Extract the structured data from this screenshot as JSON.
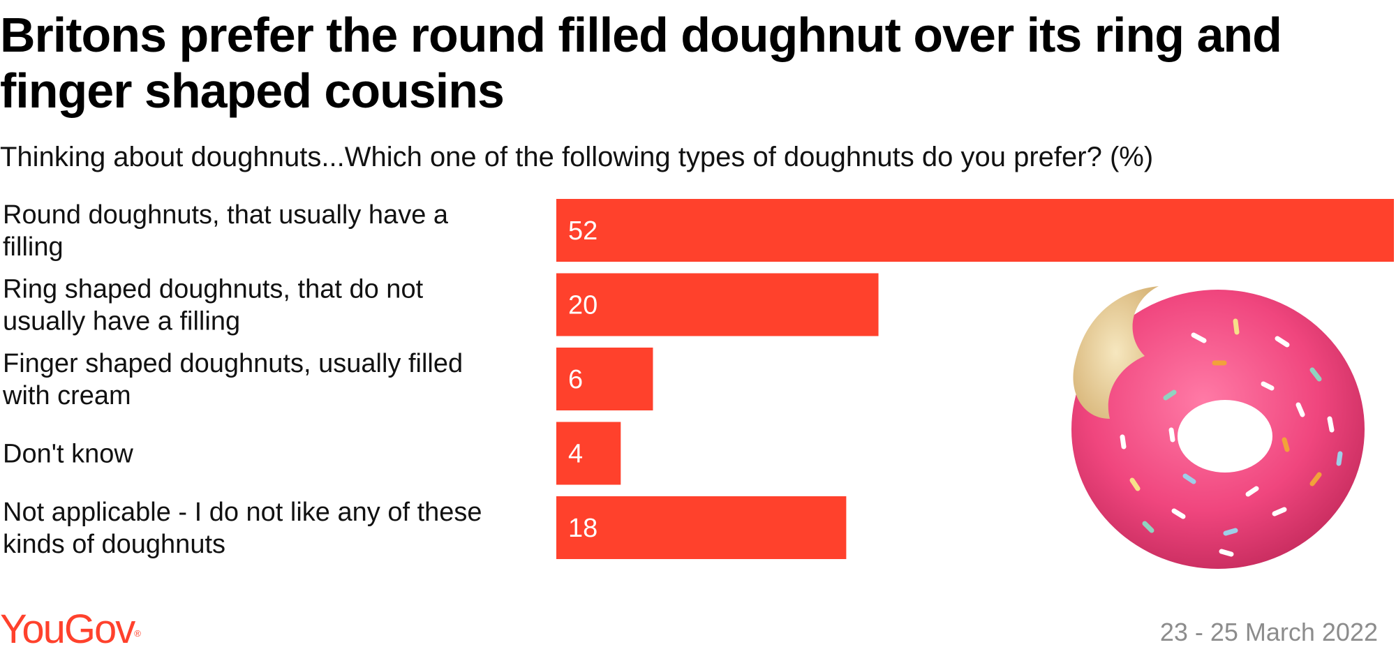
{
  "title": "Britons prefer the round filled doughnut over its ring and finger shaped cousins",
  "subtitle": "Thinking about doughnuts...Which one of the following types of doughnuts do you prefer? (%)",
  "logo_text": "YouGov",
  "date": "23 - 25 March 2022",
  "colors": {
    "bar": "#ff412c",
    "logo": "#ff412c",
    "date": "#8c8c8c",
    "donut_icing": "#f0467e"
  },
  "chart_data": {
    "type": "bar",
    "orientation": "horizontal",
    "title": "Britons prefer the round filled doughnut over its ring and finger shaped cousins",
    "subtitle": "Thinking about doughnuts...Which one of the following types of doughnuts do you prefer? (%)",
    "categories": [
      [
        "Round doughnuts, that usually have a",
        "filling"
      ],
      [
        "Ring shaped doughnuts, that do not",
        "usually have a filling"
      ],
      [
        "Finger shaped doughnuts, usually filled",
        "with cream"
      ],
      [
        "Don't know"
      ],
      [
        "Not applicable - I do not like any of these",
        "kinds of doughnuts"
      ]
    ],
    "values": [
      52,
      20,
      6,
      4,
      18
    ],
    "data_labels": [
      "52",
      "20",
      "6",
      "4",
      "18"
    ],
    "xlim": [
      0,
      52
    ],
    "grid": false,
    "legend": "none"
  }
}
